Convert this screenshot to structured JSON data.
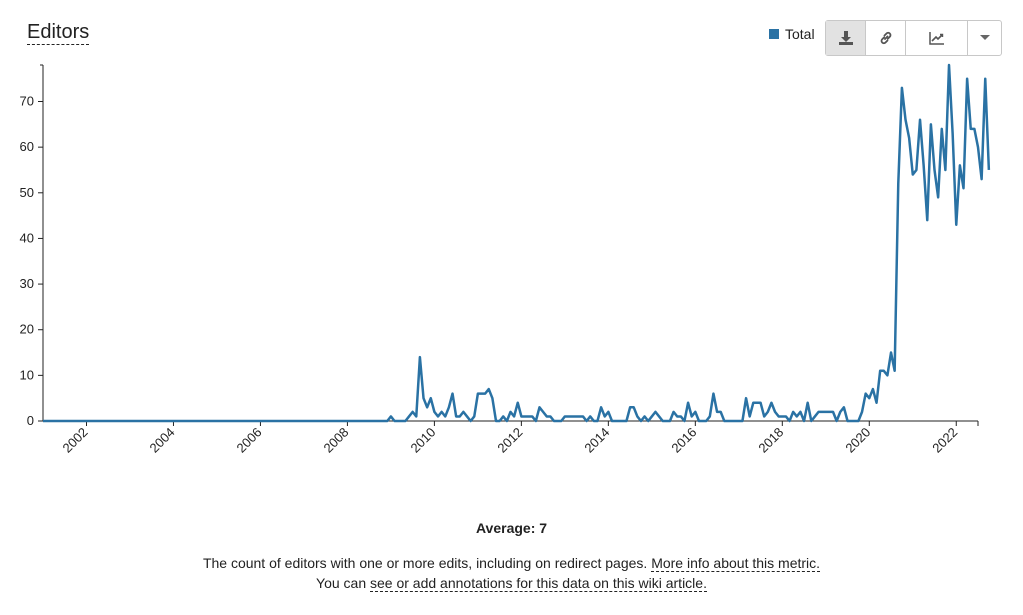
{
  "header": {
    "title": "Editors",
    "legend_label": "Total",
    "series_color": "#2a72a4"
  },
  "toolbar": {
    "download_icon": "download-icon",
    "link_icon": "link-icon",
    "chart_type_icon": "line-chart-icon",
    "menu_icon": "chevron-down-icon"
  },
  "footer": {
    "average": "Average: 7",
    "description": "The count of editors with one or more edits, including on redirect pages.",
    "more_info_link": "More info about this metric.",
    "annotations_prefix": "You can",
    "annotations_link": "see or add annotations for this data on this wiki article."
  },
  "chart_data": {
    "type": "line",
    "title": "Editors",
    "xlabel": "",
    "ylabel": "",
    "x_range": [
      "2001-01",
      "2022-07"
    ],
    "ylim": [
      0,
      78
    ],
    "x_ticks": [
      "2002",
      "2004",
      "2006",
      "2008",
      "2010",
      "2012",
      "2014",
      "2016",
      "2018",
      "2020",
      "2022"
    ],
    "y_ticks": [
      0,
      10,
      20,
      30,
      40,
      50,
      60,
      70
    ],
    "grid": false,
    "legend": "top-right",
    "series": [
      {
        "name": "Total",
        "color": "#2a72a4",
        "points": [
          [
            "2001-01",
            0
          ],
          [
            "2008-12",
            0
          ],
          [
            "2009-01",
            1
          ],
          [
            "2009-02",
            0
          ],
          [
            "2009-05",
            0
          ],
          [
            "2009-06",
            1
          ],
          [
            "2009-07",
            2
          ],
          [
            "2009-08",
            1
          ],
          [
            "2009-09",
            14
          ],
          [
            "2009-10",
            5
          ],
          [
            "2009-11",
            3
          ],
          [
            "2009-12",
            5
          ],
          [
            "2010-01",
            2
          ],
          [
            "2010-02",
            1
          ],
          [
            "2010-03",
            2
          ],
          [
            "2010-04",
            1
          ],
          [
            "2010-05",
            3
          ],
          [
            "2010-06",
            6
          ],
          [
            "2010-07",
            1
          ],
          [
            "2010-08",
            1
          ],
          [
            "2010-09",
            2
          ],
          [
            "2010-10",
            1
          ],
          [
            "2010-11",
            0
          ],
          [
            "2010-12",
            1
          ],
          [
            "2011-01",
            6
          ],
          [
            "2011-02",
            6
          ],
          [
            "2011-03",
            6
          ],
          [
            "2011-04",
            7
          ],
          [
            "2011-05",
            5
          ],
          [
            "2011-06",
            0
          ],
          [
            "2011-07",
            0
          ],
          [
            "2011-08",
            1
          ],
          [
            "2011-09",
            0
          ],
          [
            "2011-10",
            2
          ],
          [
            "2011-11",
            1
          ],
          [
            "2011-12",
            4
          ],
          [
            "2012-01",
            1
          ],
          [
            "2012-02",
            1
          ],
          [
            "2012-03",
            1
          ],
          [
            "2012-04",
            1
          ],
          [
            "2012-05",
            0
          ],
          [
            "2012-06",
            3
          ],
          [
            "2012-07",
            2
          ],
          [
            "2012-08",
            1
          ],
          [
            "2012-09",
            1
          ],
          [
            "2012-10",
            0
          ],
          [
            "2012-11",
            0
          ],
          [
            "2012-12",
            0
          ],
          [
            "2013-01",
            1
          ],
          [
            "2013-02",
            1
          ],
          [
            "2013-03",
            1
          ],
          [
            "2013-04",
            1
          ],
          [
            "2013-05",
            1
          ],
          [
            "2013-06",
            1
          ],
          [
            "2013-07",
            0
          ],
          [
            "2013-08",
            1
          ],
          [
            "2013-09",
            0
          ],
          [
            "2013-10",
            0
          ],
          [
            "2013-11",
            3
          ],
          [
            "2013-12",
            1
          ],
          [
            "2014-01",
            2
          ],
          [
            "2014-02",
            0
          ],
          [
            "2014-03",
            0
          ],
          [
            "2014-04",
            0
          ],
          [
            "2014-05",
            0
          ],
          [
            "2014-06",
            0
          ],
          [
            "2014-07",
            3
          ],
          [
            "2014-08",
            3
          ],
          [
            "2014-09",
            1
          ],
          [
            "2014-10",
            0
          ],
          [
            "2014-11",
            1
          ],
          [
            "2014-12",
            0
          ],
          [
            "2015-01",
            1
          ],
          [
            "2015-02",
            2
          ],
          [
            "2015-03",
            1
          ],
          [
            "2015-04",
            0
          ],
          [
            "2015-05",
            0
          ],
          [
            "2015-06",
            0
          ],
          [
            "2015-07",
            2
          ],
          [
            "2015-08",
            1
          ],
          [
            "2015-09",
            1
          ],
          [
            "2015-10",
            0
          ],
          [
            "2015-11",
            4
          ],
          [
            "2015-12",
            1
          ],
          [
            "2016-01",
            2
          ],
          [
            "2016-02",
            0
          ],
          [
            "2016-03",
            0
          ],
          [
            "2016-04",
            0
          ],
          [
            "2016-05",
            1
          ],
          [
            "2016-06",
            6
          ],
          [
            "2016-07",
            2
          ],
          [
            "2016-08",
            2
          ],
          [
            "2016-09",
            0
          ],
          [
            "2016-10",
            0
          ],
          [
            "2016-11",
            0
          ],
          [
            "2016-12",
            0
          ],
          [
            "2017-01",
            0
          ],
          [
            "2017-02",
            0
          ],
          [
            "2017-03",
            5
          ],
          [
            "2017-04",
            1
          ],
          [
            "2017-05",
            4
          ],
          [
            "2017-06",
            4
          ],
          [
            "2017-07",
            4
          ],
          [
            "2017-08",
            1
          ],
          [
            "2017-09",
            2
          ],
          [
            "2017-10",
            4
          ],
          [
            "2017-11",
            2
          ],
          [
            "2017-12",
            1
          ],
          [
            "2018-01",
            1
          ],
          [
            "2018-02",
            1
          ],
          [
            "2018-03",
            0
          ],
          [
            "2018-04",
            2
          ],
          [
            "2018-05",
            1
          ],
          [
            "2018-06",
            2
          ],
          [
            "2018-07",
            0
          ],
          [
            "2018-08",
            4
          ],
          [
            "2018-09",
            0
          ],
          [
            "2018-10",
            1
          ],
          [
            "2018-11",
            2
          ],
          [
            "2018-12",
            2
          ],
          [
            "2019-01",
            2
          ],
          [
            "2019-02",
            2
          ],
          [
            "2019-03",
            2
          ],
          [
            "2019-04",
            0
          ],
          [
            "2019-05",
            2
          ],
          [
            "2019-06",
            3
          ],
          [
            "2019-07",
            0
          ],
          [
            "2019-08",
            0
          ],
          [
            "2019-09",
            0
          ],
          [
            "2019-10",
            0
          ],
          [
            "2019-11",
            2
          ],
          [
            "2019-12",
            6
          ],
          [
            "2020-01",
            5
          ],
          [
            "2020-02",
            7
          ],
          [
            "2020-03",
            4
          ],
          [
            "2020-04",
            11
          ],
          [
            "2020-05",
            11
          ],
          [
            "2020-06",
            10
          ],
          [
            "2020-07",
            15
          ],
          [
            "2020-08",
            11
          ],
          [
            "2020-09",
            52
          ],
          [
            "2020-10",
            73
          ],
          [
            "2020-11",
            66
          ],
          [
            "2020-12",
            62
          ],
          [
            "2021-01",
            54
          ],
          [
            "2021-02",
            55
          ],
          [
            "2021-03",
            66
          ],
          [
            "2021-04",
            56
          ],
          [
            "2021-05",
            44
          ],
          [
            "2021-06",
            65
          ],
          [
            "2021-07",
            55
          ],
          [
            "2021-08",
            49
          ],
          [
            "2021-09",
            64
          ],
          [
            "2021-10",
            55
          ],
          [
            "2021-11",
            78
          ],
          [
            "2021-12",
            63
          ],
          [
            "2022-01",
            43
          ],
          [
            "2022-02",
            56
          ],
          [
            "2022-03",
            51
          ],
          [
            "2022-04",
            75
          ],
          [
            "2022-05",
            64
          ],
          [
            "2022-06",
            64
          ],
          [
            "2022-07",
            60
          ],
          [
            "2022-08",
            53
          ],
          [
            "2022-09",
            75
          ],
          [
            "2022-10",
            55
          ]
        ]
      }
    ]
  }
}
